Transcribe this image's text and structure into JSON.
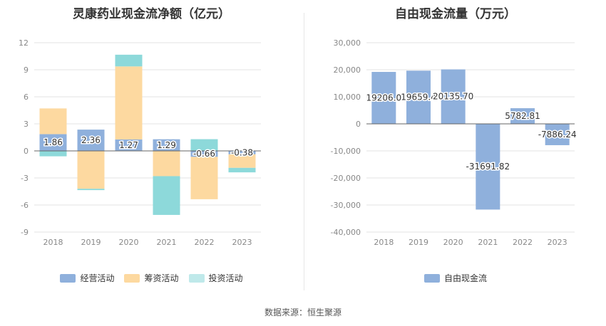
{
  "source_text": "数据来源：恒生聚源",
  "chart_data": [
    {
      "type": "bar",
      "stacked": true,
      "title": "灵康药业现金流净额（亿元）",
      "categories": [
        "2018",
        "2019",
        "2020",
        "2021",
        "2022",
        "2023"
      ],
      "ylim": [
        -9,
        12
      ],
      "yticks": [
        "12",
        "9",
        "6",
        "3",
        "0",
        "-3",
        "-6",
        "-9"
      ],
      "grid": true,
      "legend_position": "bottom",
      "series": [
        {
          "name": "经营活动",
          "color": "#8fb0dc",
          "values": [
            1.86,
            2.36,
            1.27,
            1.29,
            -0.66,
            -0.38
          ],
          "labels": [
            "1.86",
            "2.36",
            "1.27",
            "1.29",
            "-0.66",
            "-0.38"
          ]
        },
        {
          "name": "筹资活动",
          "color": "#fdd9a0",
          "values": [
            2.85,
            -4.2,
            8.1,
            -2.8,
            -4.7,
            -1.5
          ]
        },
        {
          "name": "投资活动",
          "color": "#8dd9da",
          "values": [
            -0.6,
            -0.15,
            1.3,
            -4.3,
            1.3,
            -0.5
          ]
        }
      ]
    },
    {
      "type": "bar",
      "title": "自由现金流量（万元）",
      "categories": [
        "2018",
        "2019",
        "2020",
        "2021",
        "2022",
        "2023"
      ],
      "ylim": [
        -40000,
        30000
      ],
      "yticks": [
        "30,000",
        "20,000",
        "10,000",
        "0",
        "-10,000",
        "-20,000",
        "-30,000",
        "-40,000"
      ],
      "grid": true,
      "legend_position": "bottom",
      "series": [
        {
          "name": "自由现金流",
          "color": "#8fb0dc",
          "values": [
            19206.0,
            19659.4,
            20135.7,
            -31691.82,
            5782.81,
            -7886.24
          ],
          "labels": [
            "19206.0",
            "19659.4",
            "20135.70",
            "-31691.82",
            "5782.81",
            "-7886.24"
          ]
        }
      ]
    }
  ]
}
